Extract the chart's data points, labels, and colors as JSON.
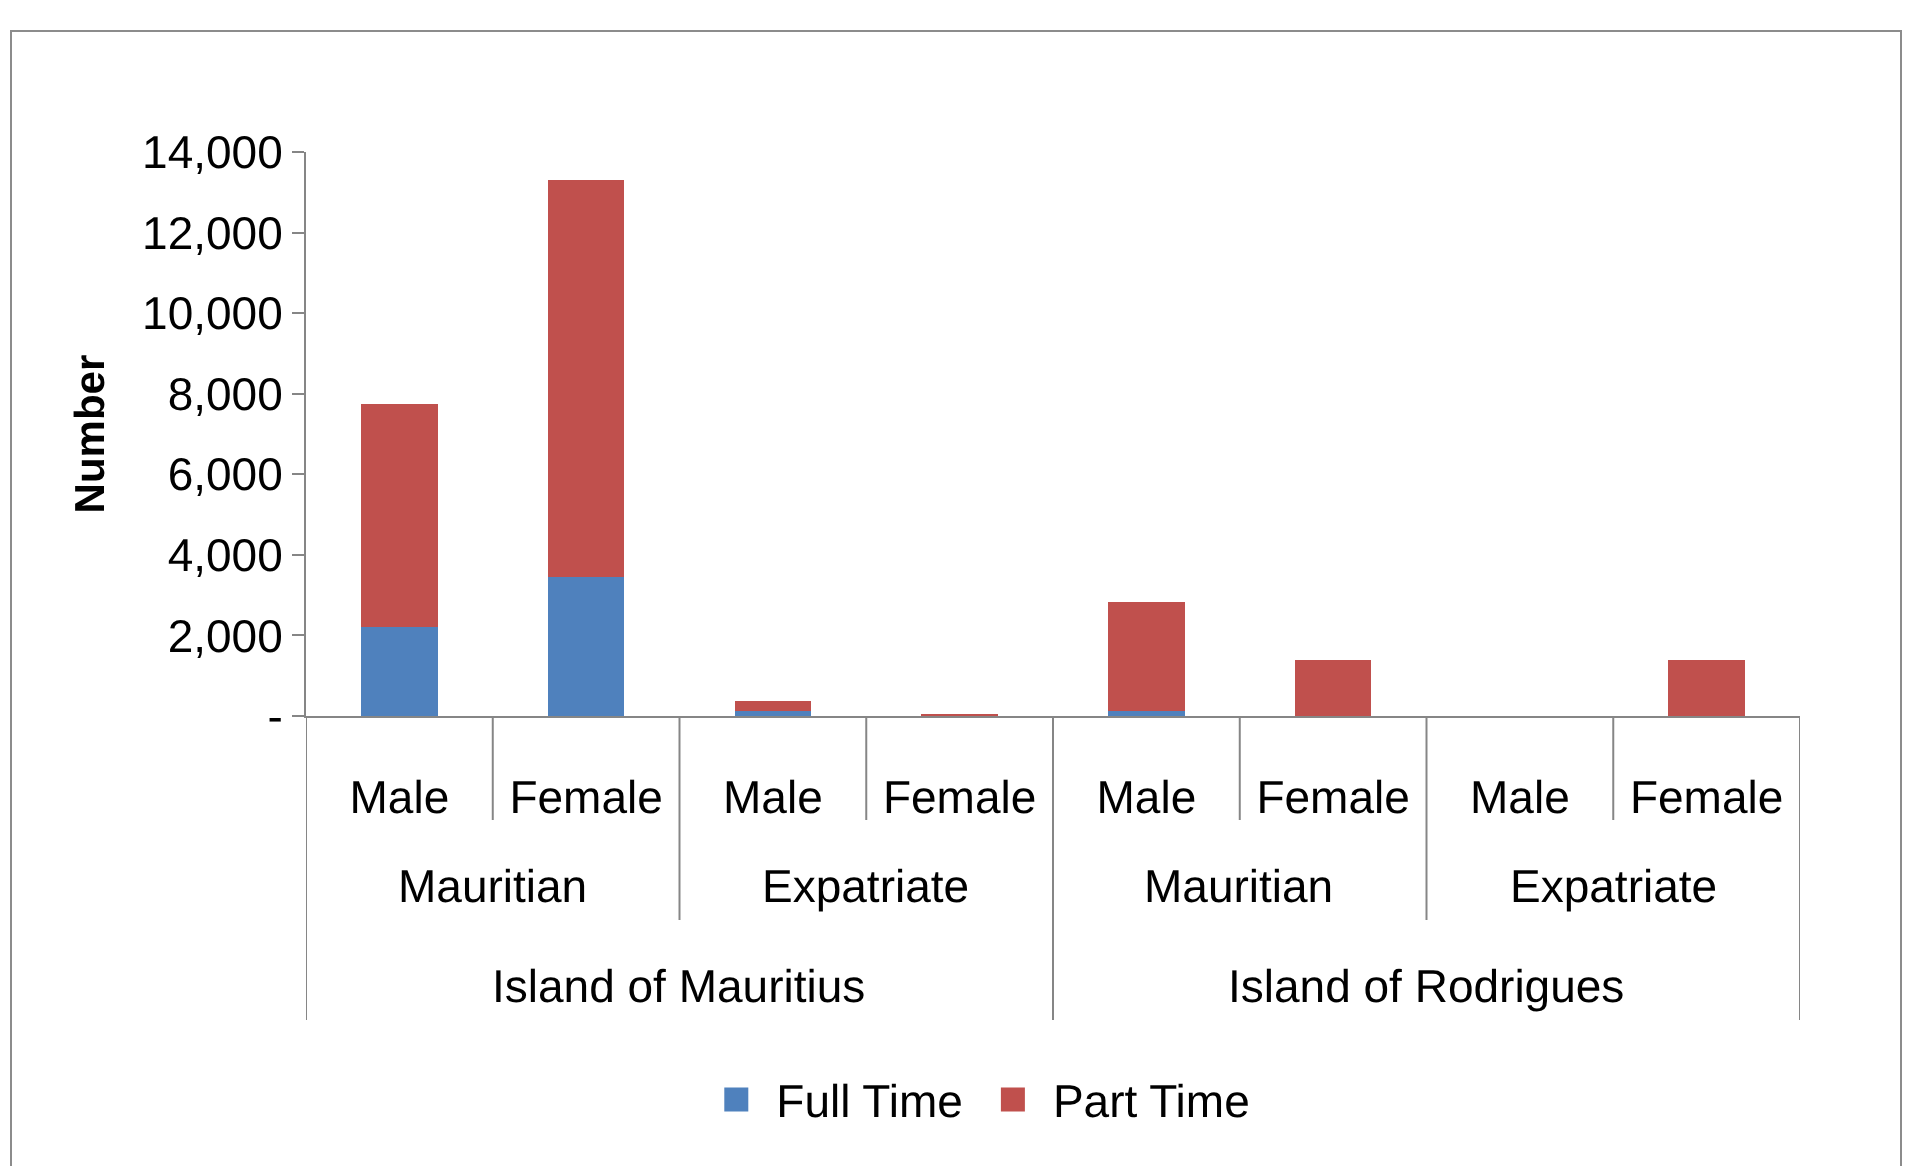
{
  "chart_data": {
    "type": "bar",
    "stacked": true,
    "ylabel": "Number",
    "categories": [
      "Male",
      "Female",
      "Male",
      "Female",
      "Male",
      "Female",
      "Male",
      "Female"
    ],
    "series": [
      {
        "name": "Full Time",
        "color": "#4f81bd",
        "values": [
          2200,
          3450,
          130,
          0,
          120,
          0,
          0,
          0
        ]
      },
      {
        "name": "Part Time",
        "color": "#c0504d",
        "values": [
          5550,
          9850,
          240,
          50,
          2700,
          1380,
          0,
          1380
        ]
      }
    ],
    "ylim": [
      0,
      14000
    ],
    "yticks": [
      {
        "value": 0,
        "label": "-"
      },
      {
        "value": 2000,
        "label": "2,000"
      },
      {
        "value": 4000,
        "label": "4,000"
      },
      {
        "value": 6000,
        "label": "6,000"
      },
      {
        "value": 8000,
        "label": "8,000"
      },
      {
        "value": 10000,
        "label": "10,000"
      },
      {
        "value": 12000,
        "label": "12,000"
      },
      {
        "value": 14000,
        "label": "14,000"
      }
    ],
    "grid": false,
    "legend": "bottom",
    "annotations": [
      "Mauritian",
      "Expatriate",
      "Mauritian",
      "Expatriate",
      "Island of Mauritius",
      "Island of Rodrigues"
    ]
  }
}
